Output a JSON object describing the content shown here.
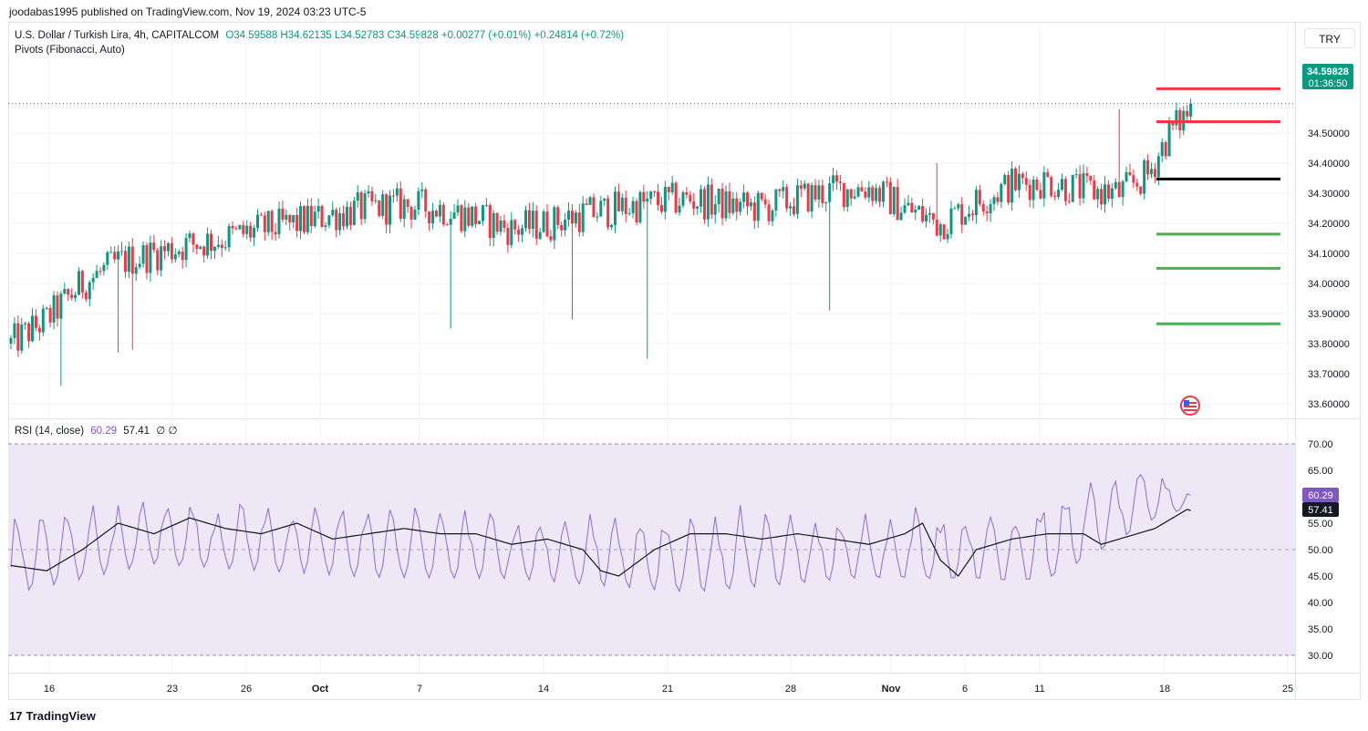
{
  "header": {
    "published": "joodabas1995 published on TradingView.com, Nov 19, 2024 03:23 UTC-5",
    "symbol_line": "U.S. Dollar / Turkish Lira, 4h, CAPITALCOM",
    "ohlc": "O34.59588  H34.62135  L34.52783  C34.59828  +0.00277 (+0.01%)  +0.24814 (+0.72%)",
    "indicator": "Pivots (Fibonacci, Auto)",
    "currency_button": "TRY"
  },
  "rsi_legend": {
    "label": "RSI (14, close)",
    "rsi": "60.29",
    "ma": "57.41",
    "extra": "∅  ∅"
  },
  "price_badge": {
    "price": "34.59828",
    "countdown": "01:36:50"
  },
  "rsi_badges": {
    "rsi": "60.29",
    "ma": "57.41"
  },
  "footer": {
    "brand": "TradingView"
  },
  "colors": {
    "up": "#089981",
    "down": "#f23645",
    "rsi_line": "#7e57c2",
    "rsi_ma": "#131722",
    "rsi_band": "#ede7f6",
    "pivot_r": "#f23645",
    "pivot_p": "#000000",
    "pivot_s": "#4caf50"
  },
  "chart_data": [
    {
      "type": "candlestick",
      "title": "U.S. Dollar / Turkish Lira, 4h, CAPITALCOM",
      "ylim": [
        33.55,
        34.72
      ],
      "y_ticks": [
        "34.50000",
        "34.40000",
        "34.30000",
        "34.20000",
        "34.10000",
        "34.00000",
        "33.90000",
        "33.80000",
        "33.70000",
        "33.60000"
      ],
      "x_ticks": [
        "16",
        "23",
        "26",
        "Oct",
        "7",
        "14",
        "21",
        "28",
        "Nov",
        "6",
        "11",
        "18",
        "25"
      ],
      "last_price": 34.59828,
      "pivots": [
        {
          "name": "R3",
          "value": 34.6475,
          "color": "#f23645"
        },
        {
          "name": "R2",
          "value": 34.538,
          "color": "#f23645"
        },
        {
          "name": "P",
          "value": 34.3475,
          "color": "#000000"
        },
        {
          "name": "S1",
          "value": 34.164,
          "color": "#4caf50"
        },
        {
          "name": "S2",
          "value": 34.0505,
          "color": "#4caf50"
        },
        {
          "name": "S3",
          "value": 33.866,
          "color": "#4caf50"
        }
      ],
      "trend_points": [
        [
          0,
          33.8
        ],
        [
          10,
          33.88
        ],
        [
          20,
          34.0
        ],
        [
          30,
          34.07
        ],
        [
          40,
          34.1
        ],
        [
          50,
          34.13
        ],
        [
          60,
          34.15
        ],
        [
          70,
          34.18
        ],
        [
          80,
          34.2
        ],
        [
          90,
          34.23
        ],
        [
          100,
          34.25
        ],
        [
          110,
          34.26
        ],
        [
          120,
          34.25
        ],
        [
          130,
          34.22
        ],
        [
          140,
          34.18
        ],
        [
          150,
          34.2
        ],
        [
          160,
          34.23
        ],
        [
          170,
          34.25
        ],
        [
          180,
          34.27
        ],
        [
          190,
          34.28
        ],
        [
          200,
          34.26
        ],
        [
          210,
          34.25
        ],
        [
          220,
          34.28
        ],
        [
          230,
          34.31
        ],
        [
          240,
          34.32
        ],
        [
          250,
          34.25
        ],
        [
          260,
          34.2
        ],
        [
          270,
          34.27
        ],
        [
          280,
          34.33
        ],
        [
          290,
          34.34
        ],
        [
          300,
          34.31
        ],
        [
          310,
          34.3
        ],
        [
          318,
          34.36
        ],
        [
          324,
          34.5
        ],
        [
          330,
          34.58
        ]
      ],
      "spikes": [
        {
          "i": 14,
          "low": 33.66
        },
        {
          "i": 30,
          "low": 33.77
        },
        {
          "i": 34,
          "low": 33.78
        },
        {
          "i": 123,
          "low": 33.85
        },
        {
          "i": 157,
          "low": 33.88
        },
        {
          "i": 178,
          "low": 33.75
        },
        {
          "i": 229,
          "low": 33.91
        },
        {
          "i": 259,
          "high": 34.4
        },
        {
          "i": 310,
          "high": 34.58
        },
        {
          "i": 319,
          "low": 34.35
        }
      ]
    },
    {
      "type": "line",
      "title": "RSI (14, close)",
      "ylim": [
        30,
        70
      ],
      "y_ticks": [
        "70.00",
        "65.00",
        "60.00",
        "55.00",
        "50.00",
        "45.00",
        "40.00",
        "35.00",
        "30.00"
      ],
      "levels": [
        70,
        50,
        30
      ],
      "last_rsi": 60.29,
      "last_ma": 57.41,
      "rsi_low_points": [
        [
          0,
          36
        ],
        [
          40,
          43
        ],
        [
          100,
          40
        ],
        [
          140,
          40
        ],
        [
          190,
          36
        ],
        [
          240,
          40
        ],
        [
          290,
          38
        ],
        [
          330,
          57
        ]
      ],
      "rsi_high_points": [
        [
          0,
          58
        ],
        [
          40,
          60
        ],
        [
          100,
          59
        ],
        [
          140,
          58
        ],
        [
          190,
          59
        ],
        [
          240,
          58
        ],
        [
          280,
          60
        ],
        [
          320,
          66
        ],
        [
          330,
          61
        ]
      ],
      "ma_points": [
        [
          0,
          47
        ],
        [
          10,
          46
        ],
        [
          20,
          50
        ],
        [
          30,
          55
        ],
        [
          40,
          53
        ],
        [
          50,
          56
        ],
        [
          60,
          54
        ],
        [
          70,
          53
        ],
        [
          80,
          55
        ],
        [
          90,
          52
        ],
        [
          100,
          53
        ],
        [
          110,
          54
        ],
        [
          120,
          53
        ],
        [
          130,
          53
        ],
        [
          140,
          51
        ],
        [
          150,
          52
        ],
        [
          160,
          50
        ],
        [
          165,
          46
        ],
        [
          170,
          45
        ],
        [
          180,
          50
        ],
        [
          190,
          53
        ],
        [
          200,
          53
        ],
        [
          210,
          52
        ],
        [
          220,
          53
        ],
        [
          230,
          52
        ],
        [
          240,
          51
        ],
        [
          250,
          53
        ],
        [
          255,
          55
        ],
        [
          260,
          48
        ],
        [
          265,
          45
        ],
        [
          270,
          50
        ],
        [
          280,
          52
        ],
        [
          290,
          53
        ],
        [
          300,
          53
        ],
        [
          305,
          51
        ],
        [
          310,
          52
        ],
        [
          320,
          54
        ],
        [
          330,
          58
        ]
      ]
    }
  ]
}
